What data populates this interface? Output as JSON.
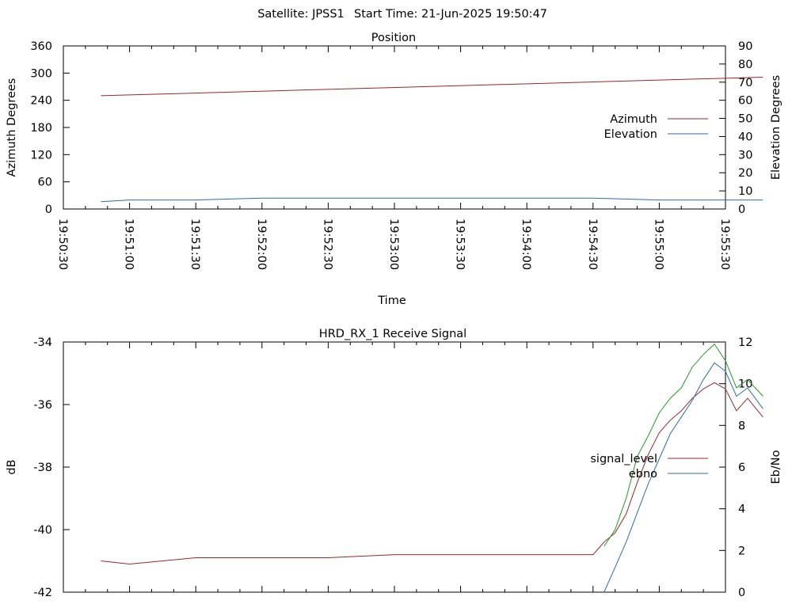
{
  "header": {
    "satellite": "Satellite: JPSS1",
    "start_time": "Start Time: 21-Jun-2025 19:50:47"
  },
  "chart_data": [
    {
      "type": "line",
      "title": "Position",
      "xlabel": "Time",
      "ylabel": "Azimuth Degrees",
      "y2label": "Elevation Degrees",
      "x_ticks": [
        "19:50:30",
        "19:51:00",
        "19:51:30",
        "19:52:00",
        "19:52:30",
        "19:53:00",
        "19:53:30",
        "19:54:00",
        "19:54:30",
        "19:55:00",
        "19:55:30"
      ],
      "ylim": [
        0,
        360
      ],
      "yticks": [
        0,
        60,
        120,
        180,
        240,
        300,
        360
      ],
      "y2lim": [
        0,
        90
      ],
      "y2ticks": [
        0,
        10,
        20,
        30,
        40,
        50,
        60,
        70,
        80,
        90
      ],
      "legend_position": "right",
      "grid": false,
      "series": [
        {
          "name": "Azimuth",
          "axis": "left",
          "color": "#a0252a",
          "x": [
            "19:50:47",
            "19:55:47"
          ],
          "values": [
            250,
            291
          ]
        },
        {
          "name": "Elevation",
          "axis": "right",
          "color": "#2a6db0",
          "x": [
            "19:50:47",
            "19:51:00",
            "19:51:15",
            "19:51:30",
            "19:52:00",
            "19:52:30",
            "19:53:00",
            "19:53:30",
            "19:53:45",
            "19:54:00",
            "19:54:30",
            "19:55:00",
            "19:55:47"
          ],
          "values": [
            4,
            5,
            5,
            5,
            6,
            6,
            6,
            6,
            6,
            6,
            6,
            5,
            5
          ]
        }
      ]
    },
    {
      "type": "line",
      "title": "HRD_RX_1 Receive Signal",
      "ylabel": "dB",
      "y2label": "Eb/No",
      "ylim": [
        -42,
        -34
      ],
      "yticks": [
        -42,
        -40,
        -38,
        -36,
        -34
      ],
      "y2lim": [
        0,
        12
      ],
      "y2ticks": [
        0,
        2,
        4,
        6,
        8,
        10,
        12
      ],
      "legend_position": "right",
      "grid": false,
      "series": [
        {
          "name": "signal_level",
          "axis": "left",
          "color": "#a0252a",
          "x": [
            "19:50:47",
            "19:51:00",
            "19:51:15",
            "19:51:30",
            "19:52:00",
            "19:52:30",
            "19:53:00",
            "19:53:30",
            "19:54:00",
            "19:54:15",
            "19:54:30",
            "19:54:35",
            "19:54:40",
            "19:54:45",
            "19:54:50",
            "19:54:55",
            "19:55:00",
            "19:55:05",
            "19:55:10",
            "19:55:15",
            "19:55:20",
            "19:55:25",
            "19:55:30",
            "19:55:35",
            "19:55:40",
            "19:55:47"
          ],
          "values": [
            -41.0,
            -41.1,
            -41.0,
            -40.9,
            -40.9,
            -40.9,
            -40.8,
            -40.8,
            -40.8,
            -40.8,
            -40.8,
            -40.4,
            -40.1,
            -39.5,
            -38.5,
            -37.6,
            -36.9,
            -36.5,
            -36.2,
            -35.8,
            -35.5,
            -35.3,
            -35.5,
            -36.2,
            -35.8,
            -36.4
          ]
        },
        {
          "name": "ebno",
          "axis": "right",
          "color": "#2a6db0",
          "x": [
            "19:54:35",
            "19:54:40",
            "19:54:45",
            "19:54:50",
            "19:54:55",
            "19:55:00",
            "19:55:05",
            "19:55:10",
            "19:55:15",
            "19:55:20",
            "19:55:25",
            "19:55:30",
            "19:55:35",
            "19:55:40",
            "19:55:47"
          ],
          "values": [
            0.0,
            1.2,
            2.4,
            3.8,
            5.2,
            6.4,
            7.6,
            8.4,
            9.2,
            10.2,
            11.0,
            10.6,
            9.4,
            9.8,
            8.8
          ]
        },
        {
          "name": "",
          "axis": "right",
          "color": "#1f9d1f",
          "x": [
            "19:54:35",
            "19:54:40",
            "19:54:45",
            "19:54:50",
            "19:54:55",
            "19:55:00",
            "19:55:05",
            "19:55:10",
            "19:55:15",
            "19:55:20",
            "19:55:25",
            "19:55:30",
            "19:55:35",
            "19:55:40",
            "19:55:47"
          ],
          "values": [
            2.2,
            3.0,
            4.5,
            6.5,
            7.5,
            8.6,
            9.3,
            9.8,
            10.8,
            11.4,
            11.9,
            11.1,
            9.8,
            10.2,
            9.4
          ]
        }
      ]
    }
  ]
}
